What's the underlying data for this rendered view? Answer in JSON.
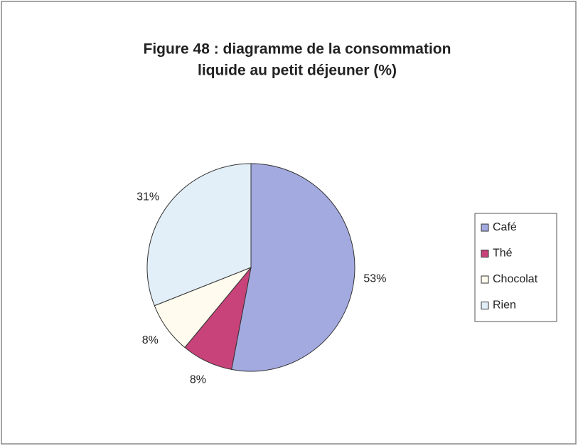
{
  "chart_data": {
    "type": "pie",
    "title": [
      "Figure 48 : diagramme de la consommation",
      "liquide au petit déjeuner (%)"
    ],
    "categories": [
      "Café",
      "Thé",
      "Chocolat",
      "Rien"
    ],
    "values": [
      53,
      8,
      8,
      31
    ],
    "value_labels": [
      "53%",
      "8%",
      "8%",
      "31%"
    ],
    "colors": [
      "#a3aae0",
      "#c8437a",
      "#fffbee",
      "#e2eff8"
    ],
    "legend": "right"
  }
}
